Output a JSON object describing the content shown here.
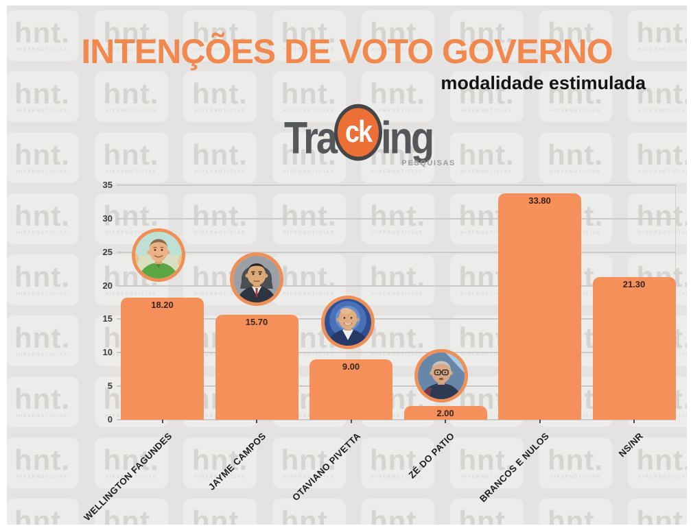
{
  "header": {
    "title": "INTENÇÕES DE VOTO GOVERNO",
    "subtitle": "modalidade estimulada"
  },
  "logo": {
    "pre": "Tra",
    "circle": "ck",
    "post": "ing",
    "caption": "PESQUISAS"
  },
  "watermark": {
    "brand": "hnt.",
    "caption": "HIPERNOTICIAS"
  },
  "chart_data": {
    "type": "bar",
    "title": "INTENÇÕES DE VOTO GOVERNO",
    "subtitle": "modalidade estimulada",
    "categories": [
      "WELLINGTON FAGUNDES",
      "JAYME CAMPOS",
      "OTAVIANO PIVETTA",
      "ZÉ DO PATIO",
      "BRANCOS E NULOS",
      "NS/NR"
    ],
    "values": [
      18.2,
      15.7,
      9.0,
      2.0,
      33.8,
      21.3
    ],
    "value_labels": [
      "18.20",
      "15.70",
      "9.00",
      "2.00",
      "33.80",
      "21.30"
    ],
    "yticks": [
      0,
      5,
      10,
      15,
      20,
      25,
      30,
      35
    ],
    "ylim": [
      0,
      35
    ],
    "xlabel": "",
    "ylabel": "",
    "grid": true,
    "legend": "none",
    "bar_color": "#f6905a",
    "avatars": [
      {
        "candidate": "Wellington Fagundes",
        "bar_index": 0
      },
      {
        "candidate": "Jayme Campos",
        "bar_index": 1
      },
      {
        "candidate": "Otaviano Pivetta",
        "bar_index": 2
      },
      {
        "candidate": "Zé do Patio",
        "bar_index": 3
      }
    ]
  },
  "colors": {
    "background": "#e4e3e1",
    "page_border": "#ffffff",
    "title_orange": "#f1884d",
    "bar_orange": "#f6905a",
    "avatar_ring": "#ef8f55",
    "value_label": "#38251a",
    "gridline": "#cbcac8",
    "logo_gray": "#56575a",
    "logo_circle_orange": "#ec7036",
    "watermark_gray": "#d6d4d1"
  }
}
